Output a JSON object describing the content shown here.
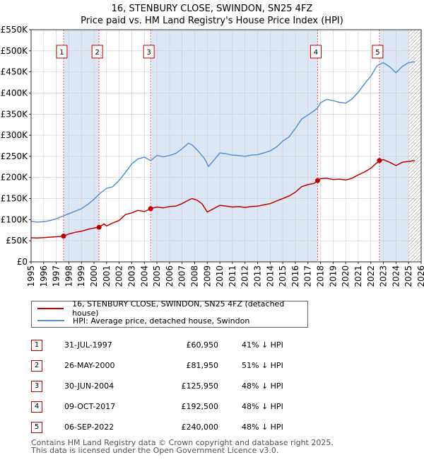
{
  "title": "16, STENBURY CLOSE, SWINDON, SN25 4FZ",
  "subtitle": "Price paid vs. HM Land Registry's House Price Index (HPI)",
  "colors": {
    "price_line": "#c00000",
    "hpi_line": "#5b8fd6",
    "shade": "#dde6f3",
    "grid": "#cccccc",
    "marker_line": "#e06070"
  },
  "chart_data": {
    "type": "line",
    "title": "16, STENBURY CLOSE, SWINDON, SN25 4FZ",
    "subtitle": "Price paid vs. HM Land Registry's House Price Index (HPI)",
    "xlim": [
      1995,
      2026
    ],
    "ylim": [
      0,
      550000
    ],
    "x_ticks": [
      1995,
      1996,
      1997,
      1998,
      1999,
      2000,
      2001,
      2002,
      2003,
      2004,
      2005,
      2006,
      2007,
      2008,
      2009,
      2010,
      2011,
      2012,
      2013,
      2014,
      2015,
      2016,
      2017,
      2018,
      2019,
      2020,
      2021,
      2022,
      2023,
      2024,
      2025,
      2026
    ],
    "x_tick_labels": [
      "1995",
      "1996",
      "1997",
      "1998",
      "1999",
      "2000",
      "2001",
      "2002",
      "2003",
      "2004",
      "2005",
      "2006",
      "2007",
      "2008",
      "2009",
      "2010",
      "2011",
      "2012",
      "2013",
      "2014",
      "2015",
      "2016",
      "2017",
      "2018",
      "2019",
      "2020",
      "2021",
      "2022",
      "2023",
      "2024",
      "2025",
      "2026"
    ],
    "y_ticks": [
      0,
      50000,
      100000,
      150000,
      200000,
      250000,
      300000,
      350000,
      400000,
      450000,
      500000,
      550000
    ],
    "y_tick_labels": [
      "£0",
      "£50K",
      "£100K",
      "£150K",
      "£200K",
      "£250K",
      "£300K",
      "£350K",
      "£400K",
      "£450K",
      "£500K",
      "£550K"
    ],
    "hatch_from": 2025.0,
    "shaded_periods": [
      [
        1997.58,
        2000.4
      ],
      [
        2004.5,
        2017.77
      ],
      [
        2022.68,
        2025.0
      ]
    ],
    "series": [
      {
        "name": "16, STENBURY CLOSE, SWINDON, SN25 4FZ (detached house)",
        "color": "#c00000",
        "points": [
          [
            1995.0,
            57000
          ],
          [
            1995.5,
            56500
          ],
          [
            1996.0,
            57500
          ],
          [
            1996.5,
            58500
          ],
          [
            1997.0,
            59500
          ],
          [
            1997.58,
            60950
          ],
          [
            1998.0,
            66000
          ],
          [
            1998.5,
            70000
          ],
          [
            1999.0,
            72500
          ],
          [
            1999.5,
            77000
          ],
          [
            2000.0,
            80000
          ],
          [
            2000.4,
            81950
          ],
          [
            2000.8,
            90000
          ],
          [
            2001.0,
            85000
          ],
          [
            2001.5,
            92000
          ],
          [
            2002.0,
            98000
          ],
          [
            2002.5,
            112000
          ],
          [
            2003.0,
            116000
          ],
          [
            2003.5,
            122000
          ],
          [
            2004.0,
            119000
          ],
          [
            2004.5,
            125950
          ],
          [
            2005.0,
            130000
          ],
          [
            2005.5,
            128000
          ],
          [
            2006.0,
            131000
          ],
          [
            2006.5,
            132000
          ],
          [
            2007.0,
            138000
          ],
          [
            2007.5,
            146000
          ],
          [
            2007.8,
            150000
          ],
          [
            2008.2,
            146000
          ],
          [
            2008.6,
            137000
          ],
          [
            2009.0,
            118000
          ],
          [
            2009.5,
            126000
          ],
          [
            2010.0,
            134000
          ],
          [
            2010.5,
            132000
          ],
          [
            2011.0,
            130000
          ],
          [
            2011.5,
            131000
          ],
          [
            2012.0,
            129000
          ],
          [
            2012.5,
            131000
          ],
          [
            2013.0,
            132000
          ],
          [
            2013.5,
            135000
          ],
          [
            2014.0,
            138000
          ],
          [
            2014.5,
            144000
          ],
          [
            2015.0,
            150000
          ],
          [
            2015.5,
            156000
          ],
          [
            2016.0,
            165000
          ],
          [
            2016.5,
            178000
          ],
          [
            2017.0,
            183000
          ],
          [
            2017.5,
            186000
          ],
          [
            2017.77,
            192500
          ],
          [
            2018.0,
            197000
          ],
          [
            2018.5,
            198000
          ],
          [
            2019.0,
            195000
          ],
          [
            2019.5,
            196000
          ],
          [
            2020.0,
            194000
          ],
          [
            2020.5,
            198000
          ],
          [
            2021.0,
            206000
          ],
          [
            2021.5,
            213000
          ],
          [
            2022.0,
            222000
          ],
          [
            2022.68,
            240000
          ],
          [
            2023.0,
            242000
          ],
          [
            2023.5,
            236000
          ],
          [
            2024.0,
            228000
          ],
          [
            2024.5,
            236000
          ],
          [
            2025.0,
            238000
          ],
          [
            2025.5,
            240000
          ]
        ]
      },
      {
        "name": "HPI: Average price, detached house, Swindon",
        "color": "#5b8fd6",
        "points": [
          [
            1995.0,
            96000
          ],
          [
            1995.5,
            94000
          ],
          [
            1996.0,
            95000
          ],
          [
            1996.5,
            98000
          ],
          [
            1997.0,
            102000
          ],
          [
            1997.5,
            108000
          ],
          [
            1998.0,
            114000
          ],
          [
            1998.5,
            120000
          ],
          [
            1999.0,
            126000
          ],
          [
            1999.5,
            136000
          ],
          [
            2000.0,
            148000
          ],
          [
            2000.5,
            163000
          ],
          [
            2001.0,
            174000
          ],
          [
            2001.5,
            178000
          ],
          [
            2002.0,
            193000
          ],
          [
            2002.5,
            212000
          ],
          [
            2003.0,
            232000
          ],
          [
            2003.5,
            244000
          ],
          [
            2004.0,
            248000
          ],
          [
            2004.5,
            240000
          ],
          [
            2005.0,
            252000
          ],
          [
            2005.5,
            249000
          ],
          [
            2006.0,
            252000
          ],
          [
            2006.5,
            257000
          ],
          [
            2007.0,
            268000
          ],
          [
            2007.5,
            281000
          ],
          [
            2007.8,
            277000
          ],
          [
            2008.3,
            262000
          ],
          [
            2008.8,
            244000
          ],
          [
            2009.1,
            226000
          ],
          [
            2009.5,
            240000
          ],
          [
            2010.0,
            258000
          ],
          [
            2010.5,
            256000
          ],
          [
            2011.0,
            253000
          ],
          [
            2011.5,
            252000
          ],
          [
            2012.0,
            250000
          ],
          [
            2012.5,
            253000
          ],
          [
            2013.0,
            254000
          ],
          [
            2013.5,
            258000
          ],
          [
            2014.0,
            263000
          ],
          [
            2014.5,
            272000
          ],
          [
            2015.0,
            286000
          ],
          [
            2015.5,
            296000
          ],
          [
            2016.0,
            316000
          ],
          [
            2016.5,
            338000
          ],
          [
            2017.0,
            348000
          ],
          [
            2017.5,
            358000
          ],
          [
            2017.77,
            365000
          ],
          [
            2018.0,
            377000
          ],
          [
            2018.5,
            385000
          ],
          [
            2019.0,
            382000
          ],
          [
            2019.5,
            378000
          ],
          [
            2020.0,
            376000
          ],
          [
            2020.5,
            386000
          ],
          [
            2021.0,
            402000
          ],
          [
            2021.5,
            422000
          ],
          [
            2022.0,
            440000
          ],
          [
            2022.5,
            465000
          ],
          [
            2023.0,
            472000
          ],
          [
            2023.5,
            462000
          ],
          [
            2024.0,
            448000
          ],
          [
            2024.5,
            463000
          ],
          [
            2025.0,
            472000
          ],
          [
            2025.5,
            474000
          ]
        ]
      }
    ],
    "sales": [
      {
        "label": "1",
        "x": 1997.58,
        "price": 60950
      },
      {
        "label": "2",
        "x": 2000.4,
        "price": 81950
      },
      {
        "label": "3",
        "x": 2004.5,
        "price": 125950
      },
      {
        "label": "4",
        "x": 2017.77,
        "price": 192500
      },
      {
        "label": "5",
        "x": 2022.68,
        "price": 240000
      }
    ]
  },
  "legend": {
    "price_label": "16, STENBURY CLOSE, SWINDON, SN25 4FZ (detached house)",
    "hpi_label": "HPI: Average price, detached house, Swindon"
  },
  "transactions": [
    {
      "num": "1",
      "date": "31-JUL-1997",
      "price": "£60,950",
      "hpi": "41% ↓ HPI"
    },
    {
      "num": "2",
      "date": "26-MAY-2000",
      "price": "£81,950",
      "hpi": "51% ↓ HPI"
    },
    {
      "num": "3",
      "date": "30-JUN-2004",
      "price": "£125,950",
      "hpi": "48% ↓ HPI"
    },
    {
      "num": "4",
      "date": "09-OCT-2017",
      "price": "£192,500",
      "hpi": "48% ↓ HPI"
    },
    {
      "num": "5",
      "date": "06-SEP-2022",
      "price": "£240,000",
      "hpi": "48% ↓ HPI"
    }
  ],
  "footer": {
    "line1": "Contains HM Land Registry data © Crown copyright and database right 2025.",
    "line2": "This data is licensed under the Open Government Licence v3.0."
  }
}
